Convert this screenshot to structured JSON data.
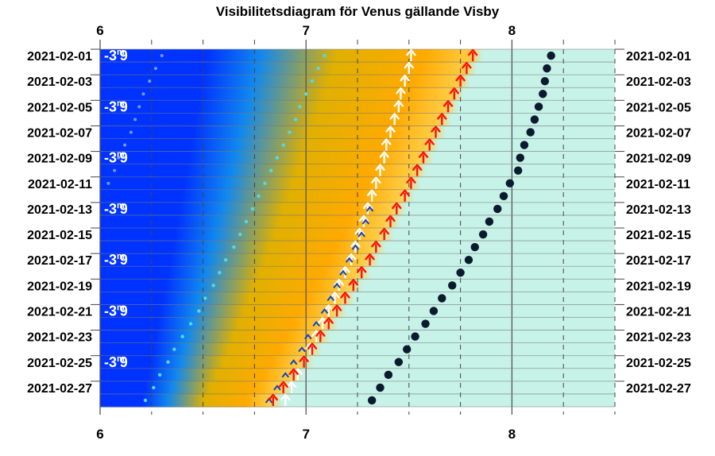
{
  "chart_data": {
    "type": "scatter",
    "title": "Visibilitetsdiagram för Venus gällande Visby",
    "xlim": [
      6,
      8.5
    ],
    "x_ticks": [
      "6",
      "7",
      "8"
    ],
    "y_labels": [
      "2021-02-01",
      "2021-02-03",
      "2021-02-05",
      "2021-02-07",
      "2021-02-09",
      "2021-02-11",
      "2021-02-13",
      "2021-02-15",
      "2021-02-17",
      "2021-02-19",
      "2021-02-21",
      "2021-02-23",
      "2021-02-25",
      "2021-02-27"
    ],
    "dates": [
      "2021-02-01",
      "2021-02-02",
      "2021-02-03",
      "2021-02-04",
      "2021-02-05",
      "2021-02-06",
      "2021-02-07",
      "2021-02-08",
      "2021-02-09",
      "2021-02-10",
      "2021-02-11",
      "2021-02-12",
      "2021-02-13",
      "2021-02-14",
      "2021-02-15",
      "2021-02-16",
      "2021-02-17",
      "2021-02-18",
      "2021-02-19",
      "2021-02-20",
      "2021-02-21",
      "2021-02-22",
      "2021-02-23",
      "2021-02-24",
      "2021-02-25",
      "2021-02-26",
      "2021-02-27",
      "2021-02-28"
    ],
    "magnitude_rows": [
      0,
      4,
      8,
      12,
      16,
      20,
      24
    ],
    "magnitude_label": {
      "sign": "-3",
      "unit": "m",
      "dec": "9"
    },
    "series": [
      {
        "marker": "white-arrow",
        "values": [
          7.51,
          7.5,
          7.48,
          7.46,
          7.45,
          7.43,
          7.41,
          7.39,
          7.38,
          7.36,
          7.34,
          7.32,
          7.3,
          7.28,
          7.26,
          7.24,
          7.22,
          7.19,
          7.16,
          7.14,
          7.11,
          7.08,
          7.05,
          7.02,
          6.99,
          6.96,
          6.93,
          6.9
        ]
      },
      {
        "marker": "blue-chevron",
        "values": [
          null,
          null,
          null,
          null,
          null,
          null,
          null,
          null,
          null,
          null,
          null,
          null,
          7.31,
          7.29,
          7.27,
          7.24,
          7.21,
          7.18,
          7.15,
          7.12,
          7.09,
          7.05,
          7.01,
          6.98,
          6.94,
          6.9,
          6.86,
          6.82
        ]
      },
      {
        "marker": "red-arrow",
        "values": [
          7.81,
          7.78,
          7.75,
          7.72,
          7.69,
          7.66,
          7.63,
          7.6,
          7.57,
          7.54,
          7.51,
          7.48,
          7.44,
          7.41,
          7.38,
          7.34,
          7.31,
          7.27,
          7.23,
          7.19,
          7.15,
          7.11,
          7.07,
          7.03,
          6.99,
          6.94,
          6.89,
          6.84
        ]
      },
      {
        "marker": "dark-dot",
        "values": [
          8.19,
          8.17,
          8.16,
          8.15,
          8.13,
          8.11,
          8.09,
          8.06,
          8.04,
          8.03,
          7.99,
          7.96,
          7.93,
          7.89,
          7.86,
          7.82,
          7.79,
          7.75,
          7.71,
          7.66,
          7.62,
          7.58,
          7.53,
          7.49,
          7.45,
          7.4,
          7.36,
          7.32
        ]
      },
      {
        "marker": "cyan-dot",
        "values": [
          7.09,
          7.06,
          7.03,
          7.0,
          6.97,
          6.95,
          6.92,
          6.89,
          6.86,
          6.83,
          6.8,
          6.77,
          6.74,
          6.71,
          6.68,
          6.65,
          6.61,
          6.58,
          6.55,
          6.51,
          6.48,
          6.44,
          6.4,
          6.36,
          6.33,
          6.29,
          6.26,
          6.22
        ]
      },
      {
        "marker": "faint-dot",
        "values": [
          6.3,
          6.27,
          6.24,
          6.21,
          6.19,
          6.17,
          6.15,
          6.12,
          6.09,
          6.07,
          6.04,
          null,
          null,
          null,
          null,
          null,
          null,
          null,
          null,
          null,
          null,
          null,
          null,
          null,
          null,
          null,
          null,
          null
        ]
      }
    ],
    "colors": {
      "night": "#0033ff",
      "mid_blue": "#1188ee",
      "twilight": "#e0b000",
      "orange": "#ffaa00",
      "day": "#c6f2e8",
      "red_arrow": "#ff1100",
      "white_arrow": "#ffffff",
      "chevron": "#1144cc",
      "dark_dot": "#0c1a2e",
      "cyan_dot": "#55d8e8"
    },
    "grid": true
  }
}
